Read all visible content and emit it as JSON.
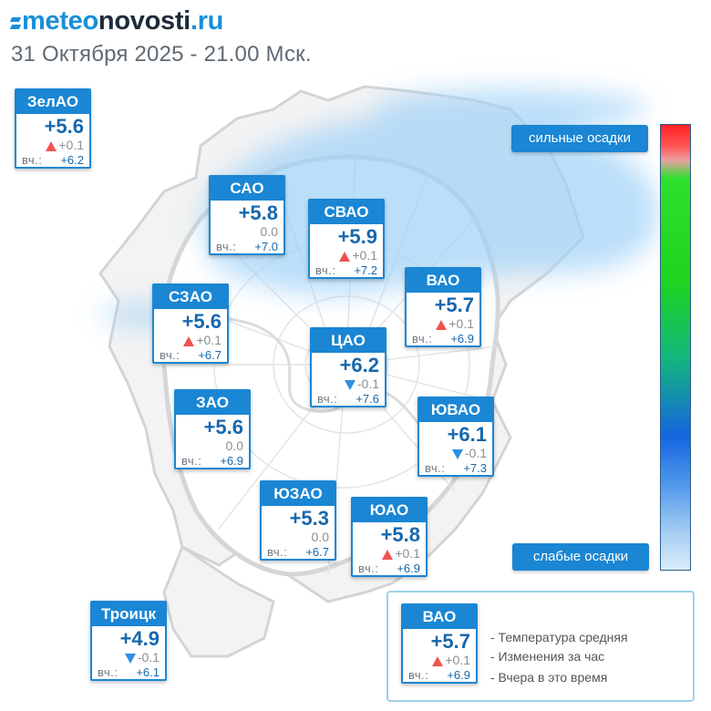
{
  "header": {
    "logo_part1": "meteo",
    "logo_part2": "novosti",
    "logo_part3": ".ru",
    "subtitle": "31 Октября 2025 - 21.00 Мск."
  },
  "districts": [
    {
      "id": "zelao",
      "name": "ЗелАО",
      "temp": "+5.6",
      "change": "+0.1",
      "trend": "up",
      "yesterday_label": "вч.:",
      "yesterday": "+6.2"
    },
    {
      "id": "sao",
      "name": "САО",
      "temp": "+5.8",
      "change": "0.0",
      "trend": "none",
      "yesterday_label": "вч.:",
      "yesterday": "+7.0"
    },
    {
      "id": "svao",
      "name": "СВАО",
      "temp": "+5.9",
      "change": "+0.1",
      "trend": "up",
      "yesterday_label": "вч.:",
      "yesterday": "+7.2"
    },
    {
      "id": "szao",
      "name": "СЗАО",
      "temp": "+5.6",
      "change": "+0.1",
      "trend": "up",
      "yesterday_label": "вч.:",
      "yesterday": "+6.7"
    },
    {
      "id": "vao",
      "name": "ВАО",
      "temp": "+5.7",
      "change": "+0.1",
      "trend": "up",
      "yesterday_label": "вч.:",
      "yesterday": "+6.9"
    },
    {
      "id": "cao",
      "name": "ЦАО",
      "temp": "+6.2",
      "change": "-0.1",
      "trend": "down",
      "yesterday_label": "вч.:",
      "yesterday": "+7.6"
    },
    {
      "id": "zao",
      "name": "ЗАО",
      "temp": "+5.6",
      "change": "0.0",
      "trend": "none",
      "yesterday_label": "вч.:",
      "yesterday": "+6.9"
    },
    {
      "id": "yuvao",
      "name": "ЮВАО",
      "temp": "+6.1",
      "change": "-0.1",
      "trend": "down",
      "yesterday_label": "вч.:",
      "yesterday": "+7.3"
    },
    {
      "id": "yuzao",
      "name": "ЮЗАО",
      "temp": "+5.3",
      "change": "0.0",
      "trend": "none",
      "yesterday_label": "вч.:",
      "yesterday": "+6.7"
    },
    {
      "id": "yuao",
      "name": "ЮАО",
      "temp": "+5.8",
      "change": "+0.1",
      "trend": "up",
      "yesterday_label": "вч.:",
      "yesterday": "+6.9"
    },
    {
      "id": "troitsk",
      "name": "Троицк",
      "temp": "+4.9",
      "change": "-0.1",
      "trend": "down",
      "yesterday_label": "вч.:",
      "yesterday": "+6.1"
    }
  ],
  "legend": {
    "sample": {
      "name": "ВАО",
      "temp": "+5.7",
      "change": "+0.1",
      "trend": "up",
      "yesterday_label": "вч.:",
      "yesterday": "+6.9"
    },
    "line1": "- Температура средняя",
    "line2": "- Изменения за час",
    "line3": "- Вчера в это время"
  },
  "scale": {
    "top_label": "сильные осадки",
    "bottom_label": "слабые осадки"
  },
  "colors": {
    "accent": "#1a86d4",
    "up_arrow": "#ef5350",
    "down_arrow": "#2d8fe0",
    "precip": "#9fd1f7"
  }
}
